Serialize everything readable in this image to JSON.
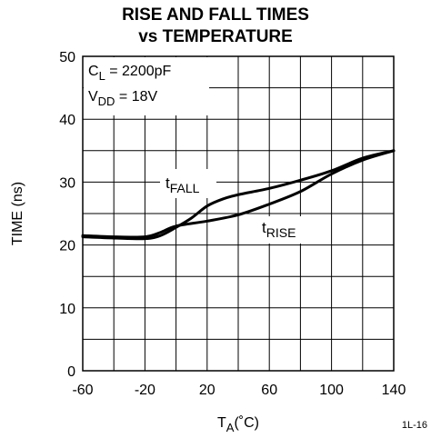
{
  "chart_data": {
    "type": "line",
    "title_line1": "RISE AND FALL TIMES",
    "title_line2": "vs TEMPERATURE",
    "ylabel": "TIME (ns)",
    "xlabel_main": "T",
    "xlabel_sub": "A",
    "xlabel_unit": "(˚C)",
    "xlim": [
      -60,
      140
    ],
    "ylim": [
      0,
      50
    ],
    "x_ticks": [
      -60,
      -20,
      20,
      60,
      100,
      140
    ],
    "y_ticks": [
      0,
      10,
      20,
      30,
      40,
      50
    ],
    "grid": true,
    "conditions": {
      "line1_main": "C",
      "line1_sub": "L",
      "line1_rest": " = 2200pF",
      "line2_main": "V",
      "line2_sub": "DD",
      "line2_rest": " = 18V"
    },
    "series": [
      {
        "name_main": "t",
        "name_sub": "FALL",
        "x": [
          -60,
          -40,
          -20,
          -10,
          0,
          10,
          20,
          30,
          40,
          60,
          80,
          100,
          120,
          140
        ],
        "y": [
          21.3,
          21.1,
          21.0,
          21.5,
          22.8,
          24.3,
          26.2,
          27.3,
          28.0,
          29.0,
          30.3,
          31.8,
          33.8,
          35.0
        ]
      },
      {
        "name_main": "t",
        "name_sub": "RISE",
        "x": [
          -60,
          -40,
          -20,
          -10,
          0,
          20,
          40,
          60,
          80,
          100,
          120,
          140
        ],
        "y": [
          21.5,
          21.3,
          21.3,
          22.0,
          23.0,
          23.8,
          24.8,
          26.5,
          28.5,
          31.3,
          33.5,
          35.0
        ]
      }
    ]
  },
  "figure_id": "1L-16"
}
